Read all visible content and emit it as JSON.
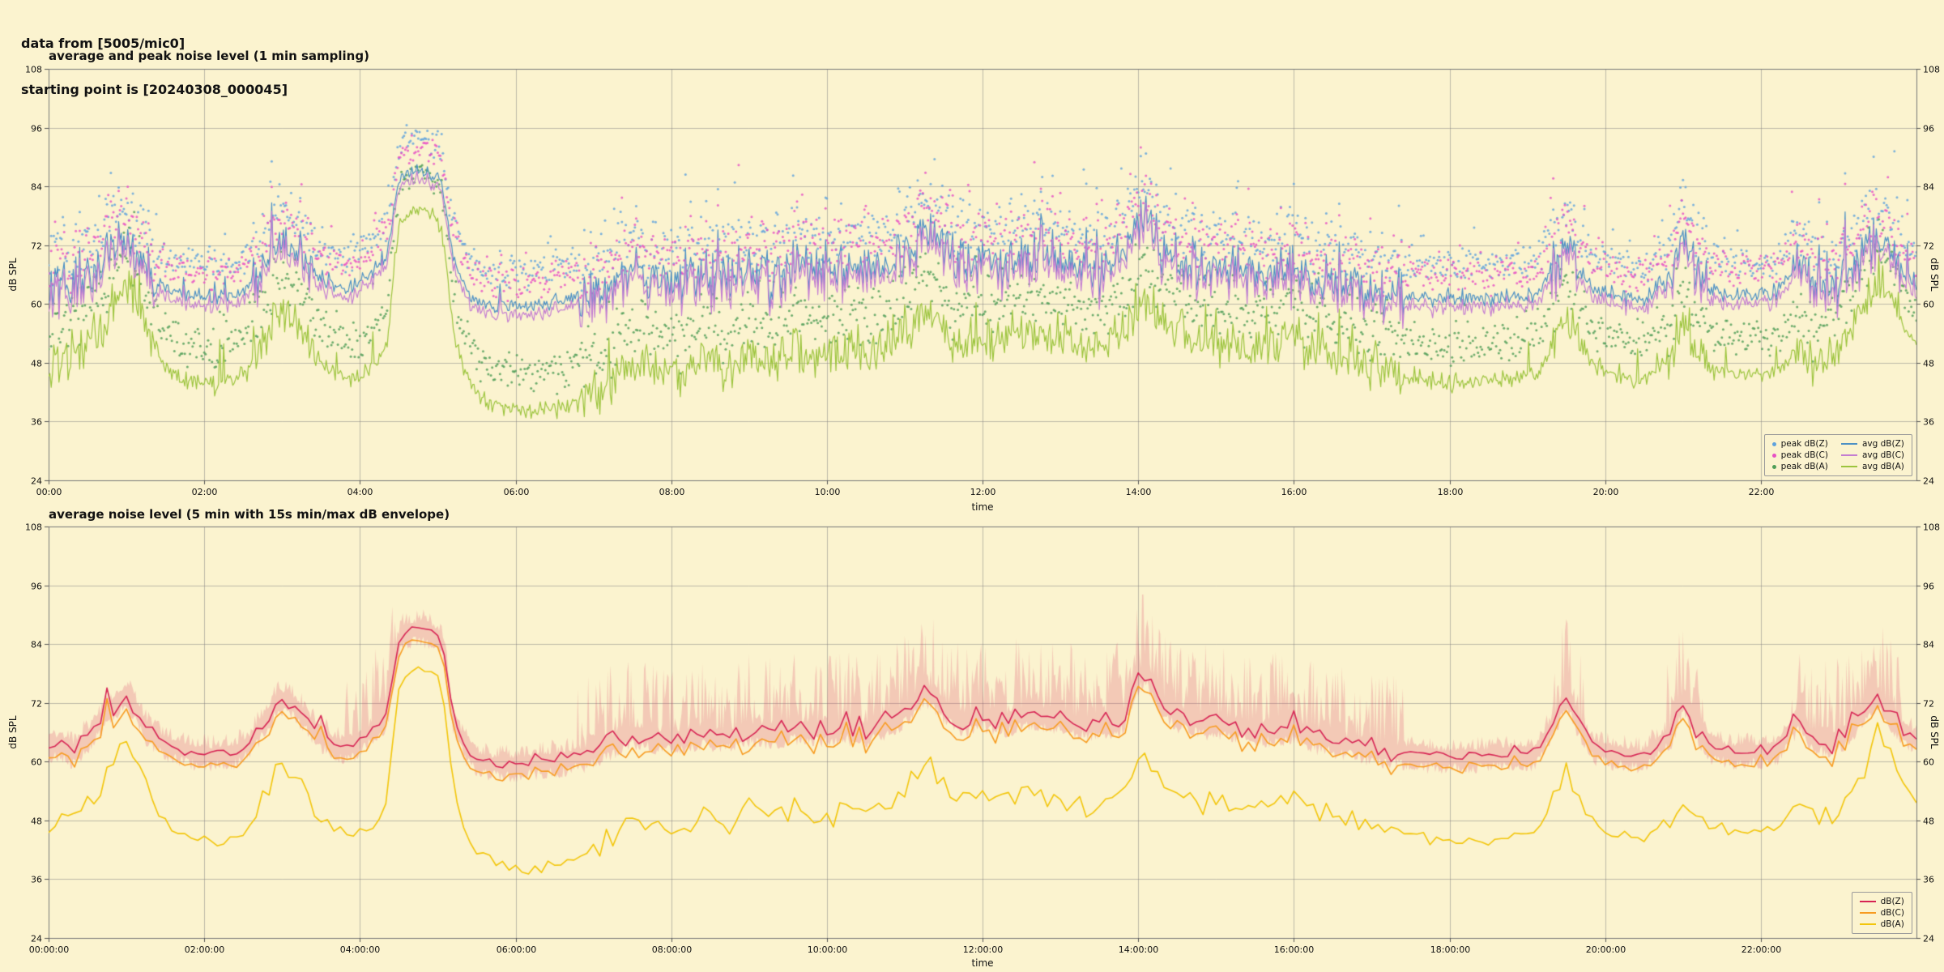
{
  "header": {
    "line1": "data from [5005/mic0]",
    "line2": "starting point is [20240308_000045]"
  },
  "chart_data": [
    {
      "type": "line+scatter",
      "title": "average and peak noise level (1 min sampling)",
      "xlabel": "time",
      "ylabel_left": "dB SPL",
      "ylabel_right": "dB SPL",
      "xlim_hours": [
        0,
        24
      ],
      "ylim": [
        24,
        108
      ],
      "yticks": [
        24,
        36,
        48,
        60,
        72,
        84,
        96,
        108
      ],
      "xtick_hours": [
        0,
        2,
        4,
        6,
        8,
        10,
        12,
        14,
        16,
        18,
        20,
        22
      ],
      "xtick_labels": [
        "00:00",
        "02:00",
        "04:00",
        "06:00",
        "08:00",
        "10:00",
        "12:00",
        "14:00",
        "16:00",
        "18:00",
        "20:00",
        "22:00"
      ],
      "sampling_minutes": 1,
      "grid": true,
      "legend_loc": "lower right",
      "noise_seed": 7,
      "busy_hours": [
        [
          0,
          1.4
        ],
        [
          2.6,
          3.4
        ],
        [
          6.8,
          17.4
        ],
        [
          19.3,
          19.75
        ],
        [
          20.8,
          21.3
        ],
        [
          22.4,
          23.8
        ]
      ],
      "anchors": {
        "dbz_avg": [
          [
            0,
            62.5
          ],
          [
            0.15,
            64
          ],
          [
            0.3,
            62
          ],
          [
            0.5,
            65
          ],
          [
            0.7,
            69
          ],
          [
            0.85,
            72
          ],
          [
            1.0,
            74
          ],
          [
            1.1,
            71
          ],
          [
            1.25,
            67
          ],
          [
            1.4,
            64.5
          ],
          [
            1.6,
            63
          ],
          [
            1.8,
            62
          ],
          [
            2.1,
            61.5
          ],
          [
            2.4,
            62
          ],
          [
            2.6,
            64
          ],
          [
            2.8,
            69
          ],
          [
            2.95,
            73
          ],
          [
            3.1,
            72.5
          ],
          [
            3.25,
            70
          ],
          [
            3.45,
            66
          ],
          [
            3.7,
            63
          ],
          [
            3.9,
            63.5
          ],
          [
            4.05,
            65
          ],
          [
            4.2,
            67
          ],
          [
            4.35,
            70
          ],
          [
            4.45,
            80
          ],
          [
            4.52,
            86
          ],
          [
            4.65,
            86.8
          ],
          [
            4.8,
            87
          ],
          [
            4.95,
            86.3
          ],
          [
            5.05,
            84.5
          ],
          [
            5.12,
            78
          ],
          [
            5.2,
            69
          ],
          [
            5.35,
            63
          ],
          [
            5.5,
            60.5
          ],
          [
            5.7,
            59.5
          ],
          [
            6.0,
            59.5
          ],
          [
            6.3,
            60
          ],
          [
            6.6,
            60.5
          ],
          [
            6.9,
            61.5
          ],
          [
            7.2,
            63.5
          ],
          [
            7.5,
            66
          ],
          [
            7.8,
            65
          ],
          [
            8.1,
            64.5
          ],
          [
            8.4,
            66
          ],
          [
            8.7,
            65
          ],
          [
            9.0,
            66.5
          ],
          [
            9.3,
            66
          ],
          [
            9.6,
            67
          ],
          [
            9.9,
            66.5
          ],
          [
            10.2,
            67
          ],
          [
            10.5,
            66.5
          ],
          [
            10.8,
            68
          ],
          [
            11.05,
            71
          ],
          [
            11.25,
            75
          ],
          [
            11.45,
            72
          ],
          [
            11.7,
            68.5
          ],
          [
            12.0,
            69.5
          ],
          [
            12.3,
            68.5
          ],
          [
            12.6,
            70
          ],
          [
            12.9,
            69
          ],
          [
            13.2,
            68
          ],
          [
            13.5,
            67.5
          ],
          [
            13.8,
            69
          ],
          [
            14.0,
            77
          ],
          [
            14.1,
            79
          ],
          [
            14.25,
            73
          ],
          [
            14.5,
            69.5
          ],
          [
            14.8,
            68
          ],
          [
            15.1,
            67.5
          ],
          [
            15.4,
            67
          ],
          [
            15.7,
            66.5
          ],
          [
            16.0,
            67
          ],
          [
            16.3,
            65
          ],
          [
            16.6,
            64
          ],
          [
            16.9,
            63
          ],
          [
            17.2,
            62
          ],
          [
            17.5,
            61.5
          ],
          [
            17.9,
            61
          ],
          [
            18.3,
            61
          ],
          [
            18.7,
            61.3
          ],
          [
            19.1,
            61.8
          ],
          [
            19.35,
            68
          ],
          [
            19.5,
            74
          ],
          [
            19.65,
            68
          ],
          [
            19.85,
            63
          ],
          [
            20.1,
            61.8
          ],
          [
            20.5,
            61
          ],
          [
            20.85,
            66
          ],
          [
            21.0,
            73
          ],
          [
            21.15,
            68
          ],
          [
            21.35,
            63
          ],
          [
            21.6,
            62
          ],
          [
            21.9,
            62
          ],
          [
            22.2,
            62.5
          ],
          [
            22.5,
            69
          ],
          [
            22.65,
            65
          ],
          [
            22.9,
            64.5
          ],
          [
            23.1,
            66
          ],
          [
            23.35,
            71
          ],
          [
            23.5,
            73.5
          ],
          [
            23.65,
            70
          ],
          [
            23.85,
            66
          ],
          [
            24,
            64.5
          ]
        ],
        "dba_avg": [
          [
            0,
            47
          ],
          [
            0.2,
            48.5
          ],
          [
            0.4,
            50
          ],
          [
            0.6,
            53
          ],
          [
            0.8,
            58
          ],
          [
            0.95,
            62
          ],
          [
            1.05,
            63.5
          ],
          [
            1.2,
            58
          ],
          [
            1.35,
            51
          ],
          [
            1.5,
            47
          ],
          [
            1.7,
            45
          ],
          [
            1.9,
            44
          ],
          [
            2.1,
            43.5
          ],
          [
            2.4,
            44.5
          ],
          [
            2.6,
            47
          ],
          [
            2.8,
            53
          ],
          [
            2.95,
            57.5
          ],
          [
            3.1,
            57
          ],
          [
            3.25,
            54
          ],
          [
            3.45,
            49
          ],
          [
            3.7,
            45.5
          ],
          [
            3.9,
            45
          ],
          [
            4.05,
            46
          ],
          [
            4.2,
            48
          ],
          [
            4.35,
            52
          ],
          [
            4.45,
            70
          ],
          [
            4.52,
            77
          ],
          [
            4.65,
            78.5
          ],
          [
            4.8,
            79
          ],
          [
            4.95,
            78
          ],
          [
            5.05,
            75
          ],
          [
            5.12,
            66
          ],
          [
            5.2,
            55
          ],
          [
            5.35,
            46
          ],
          [
            5.5,
            42
          ],
          [
            5.7,
            39.5
          ],
          [
            6.0,
            38.5
          ],
          [
            6.3,
            38.5
          ],
          [
            6.6,
            39
          ],
          [
            6.9,
            40.5
          ],
          [
            7.2,
            44
          ],
          [
            7.5,
            48.5
          ],
          [
            7.8,
            46.5
          ],
          [
            8.1,
            45.5
          ],
          [
            8.4,
            49
          ],
          [
            8.7,
            47
          ],
          [
            9.0,
            50
          ],
          [
            9.3,
            48.5
          ],
          [
            9.6,
            50.5
          ],
          [
            9.9,
            49
          ],
          [
            10.2,
            50.5
          ],
          [
            10.5,
            49.5
          ],
          [
            10.8,
            52
          ],
          [
            11.05,
            55
          ],
          [
            11.25,
            59.5
          ],
          [
            11.45,
            55.5
          ],
          [
            11.7,
            52
          ],
          [
            12.0,
            53.5
          ],
          [
            12.3,
            52
          ],
          [
            12.6,
            54.5
          ],
          [
            12.9,
            53
          ],
          [
            13.2,
            51.5
          ],
          [
            13.5,
            51
          ],
          [
            13.8,
            53.5
          ],
          [
            14.0,
            60
          ],
          [
            14.1,
            61.5
          ],
          [
            14.25,
            57
          ],
          [
            14.5,
            53.5
          ],
          [
            14.8,
            52
          ],
          [
            15.1,
            51.5
          ],
          [
            15.4,
            51
          ],
          [
            15.7,
            51
          ],
          [
            16.0,
            53.5
          ],
          [
            16.3,
            50.5
          ],
          [
            16.6,
            49
          ],
          [
            16.9,
            47.5
          ],
          [
            17.2,
            46
          ],
          [
            17.5,
            45
          ],
          [
            17.9,
            44
          ],
          [
            18.3,
            44
          ],
          [
            18.7,
            44.5
          ],
          [
            19.1,
            45.5
          ],
          [
            19.35,
            52
          ],
          [
            19.5,
            58
          ],
          [
            19.65,
            53
          ],
          [
            19.85,
            47.5
          ],
          [
            20.1,
            45.5
          ],
          [
            20.5,
            44.5
          ],
          [
            20.85,
            49
          ],
          [
            21.0,
            54
          ],
          [
            21.15,
            50.5
          ],
          [
            21.35,
            47
          ],
          [
            21.6,
            45.5
          ],
          [
            21.9,
            45.5
          ],
          [
            22.2,
            46.5
          ],
          [
            22.5,
            51
          ],
          [
            22.65,
            48.5
          ],
          [
            22.9,
            49
          ],
          [
            23.1,
            52
          ],
          [
            23.35,
            60
          ],
          [
            23.5,
            66
          ],
          [
            23.65,
            61
          ],
          [
            23.85,
            55
          ],
          [
            24,
            51
          ]
        ]
      },
      "series": [
        {
          "name": "peak dB(Z)",
          "kind": "scatter",
          "color": "#5fa2dd"
        },
        {
          "name": "peak dB(C)",
          "kind": "scatter",
          "color": "#e751c4"
        },
        {
          "name": "peak dB(A)",
          "kind": "scatter",
          "color": "#4f9e58"
        },
        {
          "name": "avg dB(Z)",
          "kind": "line",
          "color": "#4c90c4"
        },
        {
          "name": "avg dB(C)",
          "kind": "line",
          "color": "#c47ed1"
        },
        {
          "name": "avg dB(A)",
          "kind": "line",
          "color": "#9cc43e"
        }
      ]
    },
    {
      "type": "line+envelope",
      "title": "average noise level (5 min with 15s min/max dB envelope)",
      "xlabel": "time",
      "ylabel_left": "dB SPL",
      "ylabel_right": "dB SPL",
      "xlim_hours": [
        0,
        24
      ],
      "ylim": [
        24,
        108
      ],
      "yticks": [
        24,
        36,
        48,
        60,
        72,
        84,
        96,
        108
      ],
      "xtick_hours": [
        0,
        2,
        4,
        6,
        8,
        10,
        12,
        14,
        16,
        18,
        20,
        22
      ],
      "xtick_labels": [
        "00:00:00",
        "02:00:00",
        "04:00:00",
        "06:00:00",
        "08:00:00",
        "10:00:00",
        "12:00:00",
        "14:00:00",
        "16:00:00",
        "18:00:00",
        "20:00:00",
        "22:00:00"
      ],
      "sampling_minutes": 5,
      "envelope_seconds": 15,
      "grid": true,
      "legend_loc": "lower right",
      "noise_seed": 99,
      "anchors_ref": 0,
      "busy_hours": [
        [
          0,
          1.4
        ],
        [
          2.6,
          3.4
        ],
        [
          6.8,
          17.4
        ],
        [
          19.3,
          19.75
        ],
        [
          20.8,
          21.3
        ],
        [
          22.4,
          23.8
        ]
      ],
      "envelope_busy_hours": [
        [
          3.8,
          4.45
        ],
        [
          6.8,
          17.4
        ],
        [
          19.3,
          19.75
        ],
        [
          20.8,
          21.3
        ],
        [
          22.4,
          23.8
        ]
      ],
      "series": [
        {
          "name": "dB(Z)",
          "kind": "line",
          "color": "#d62454",
          "envelope_color": "rgba(214,36,84,0.20)"
        },
        {
          "name": "dB(C)",
          "kind": "line",
          "color": "#f79b20"
        },
        {
          "name": "dB(A)",
          "kind": "line",
          "color": "#f2c50a"
        }
      ]
    }
  ]
}
